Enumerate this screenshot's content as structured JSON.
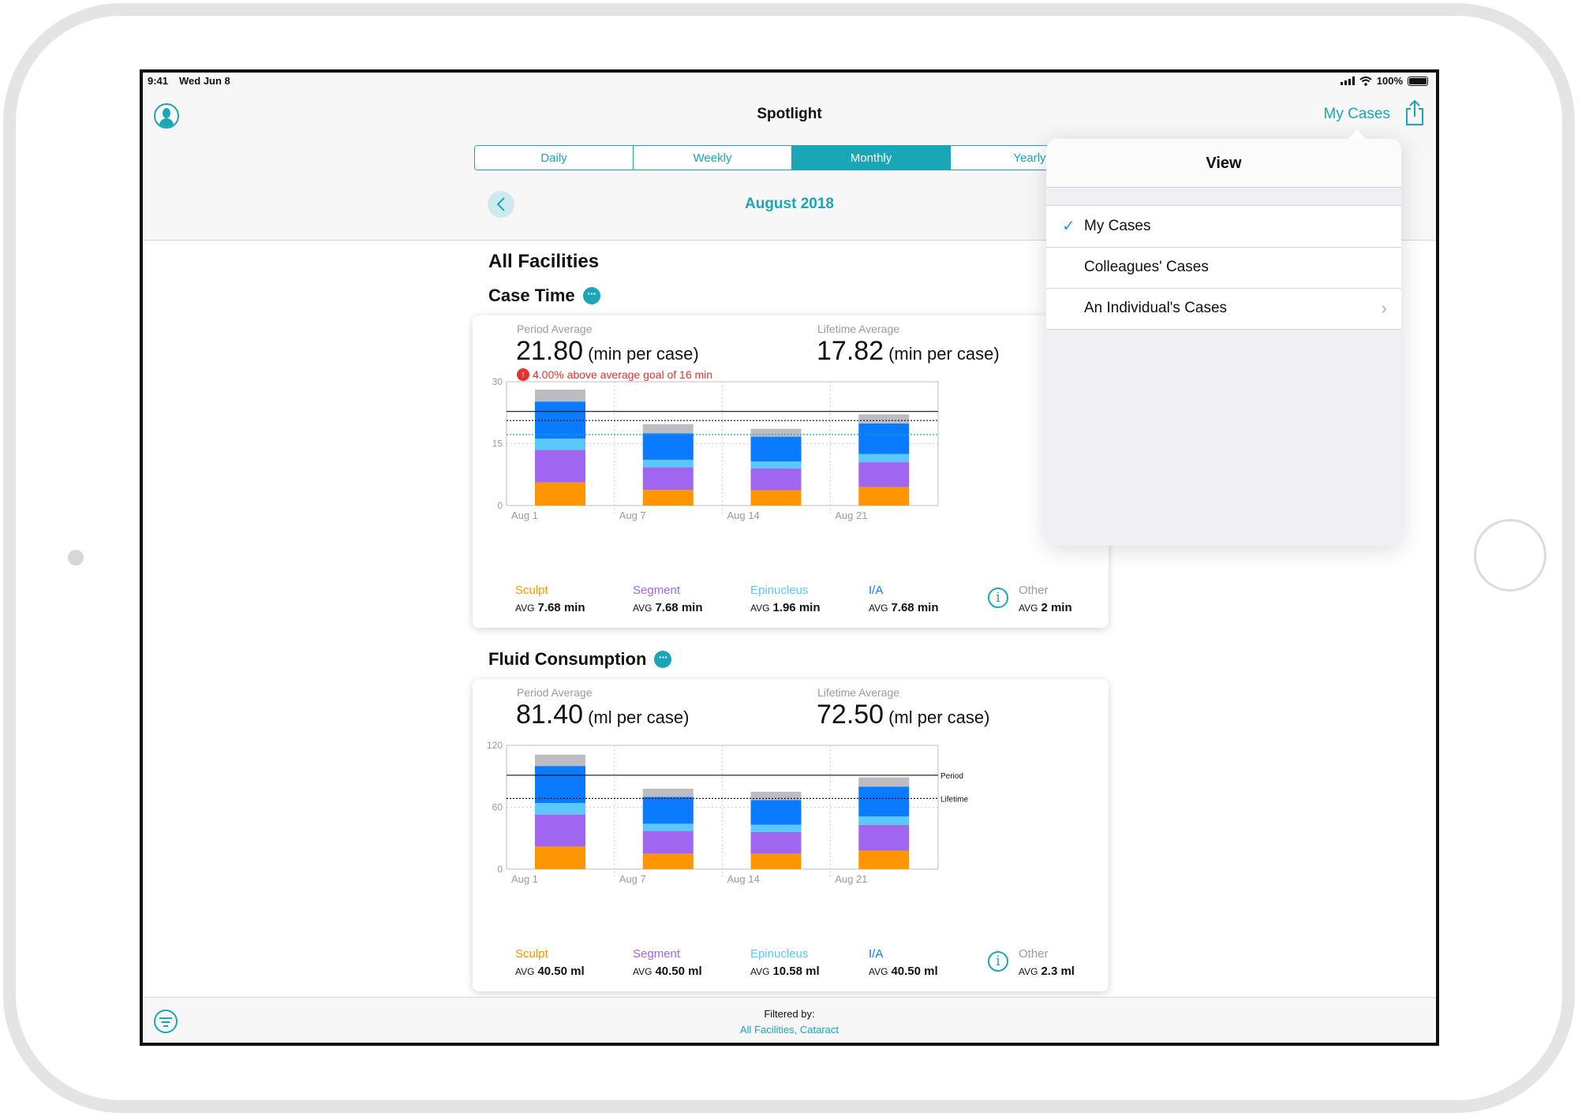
{
  "status_bar": {
    "time": "9:41",
    "date": "Wed Jun 8",
    "battery": "100%"
  },
  "nav": {
    "title": "Spotlight",
    "right_label": "My Cases"
  },
  "segments": [
    "Daily",
    "Weekly",
    "Monthly",
    "Yearly"
  ],
  "active_segment": "Monthly",
  "period_label": "August 2018",
  "facility_title": "All Facilities",
  "colors": {
    "accent": "#1aa6b7",
    "sculpt": "#ff9500",
    "segment": "#a066f0",
    "epinucleus": "#5ac8fa",
    "ia": "#0a7aff",
    "other": "#bcbcc2",
    "alert": "#e3332f"
  },
  "case_time": {
    "title": "Case Time",
    "period_label": "Period Average",
    "period_value": "21.80",
    "period_unit": "(min per case)",
    "lifetime_label": "Lifetime Average",
    "lifetime_value": "17.82",
    "lifetime_unit": "(min per case)",
    "goal_text": "4.00% above average goal of 16 min",
    "legend": [
      {
        "name": "Sculpt",
        "avg_label": "AVG",
        "avg": "7.68 min"
      },
      {
        "name": "Segment",
        "avg_label": "AVG",
        "avg": "7.68 min"
      },
      {
        "name": "Epinucleus",
        "avg_label": "AVG",
        "avg": "1.96 min"
      },
      {
        "name": "I/A",
        "avg_label": "AVG",
        "avg": "7.68 min"
      },
      {
        "name": "Other",
        "avg_label": "AVG",
        "avg": "2 min"
      }
    ]
  },
  "fluid": {
    "title": "Fluid Consumption",
    "period_label": "Period Average",
    "period_value": "81.40",
    "period_unit": "(ml per case)",
    "lifetime_label": "Lifetime Average",
    "lifetime_value": "72.50",
    "lifetime_unit": "(ml per case)",
    "legend": [
      {
        "name": "Sculpt",
        "avg_label": "AVG",
        "avg": "40.50 ml"
      },
      {
        "name": "Segment",
        "avg_label": "AVG",
        "avg": "40.50 ml"
      },
      {
        "name": "Epinucleus",
        "avg_label": "AVG",
        "avg": "10.58 ml"
      },
      {
        "name": "I/A",
        "avg_label": "AVG",
        "avg": "40.50 ml"
      },
      {
        "name": "Other",
        "avg_label": "AVG",
        "avg": "2.3 ml"
      }
    ]
  },
  "chart_data": [
    {
      "type": "bar",
      "stacked": true,
      "categories": [
        "Aug 1",
        "Aug 7",
        "Aug 14",
        "Aug 21"
      ],
      "ylim": [
        0,
        30
      ],
      "yticks": [
        0,
        15,
        30
      ],
      "series": [
        {
          "name": "Sculpt",
          "values": [
            5.6,
            3.8,
            3.7,
            4.5
          ]
        },
        {
          "name": "Segment",
          "values": [
            7.9,
            5.5,
            5.3,
            6.0
          ]
        },
        {
          "name": "Epinucleus",
          "values": [
            2.7,
            1.8,
            1.7,
            2.0
          ]
        },
        {
          "name": "I/A",
          "values": [
            9.0,
            6.4,
            6.0,
            7.4
          ]
        },
        {
          "name": "Other",
          "values": [
            2.9,
            2.2,
            1.9,
            2.2
          ]
        }
      ],
      "reference_lines": [
        {
          "style": "solid",
          "value": 22.8
        },
        {
          "style": "dotted",
          "value": 20.6
        },
        {
          "style": "dotted-teal",
          "value": 17.2
        }
      ]
    },
    {
      "type": "bar",
      "stacked": true,
      "categories": [
        "Aug 1",
        "Aug 7",
        "Aug 14",
        "Aug 21"
      ],
      "ylim": [
        0,
        120
      ],
      "yticks": [
        0,
        60,
        120
      ],
      "series": [
        {
          "name": "Sculpt",
          "values": [
            22,
            15,
            15,
            18
          ]
        },
        {
          "name": "Segment",
          "values": [
            31,
            22,
            21,
            25
          ]
        },
        {
          "name": "Epinucleus",
          "values": [
            11,
            7,
            7,
            8
          ]
        },
        {
          "name": "I/A",
          "values": [
            36,
            26,
            24,
            29
          ]
        },
        {
          "name": "Other",
          "values": [
            11,
            8,
            8,
            9
          ]
        }
      ],
      "reference_lines": [
        {
          "label": "Period",
          "style": "solid",
          "value": 91
        },
        {
          "label": "Lifetime",
          "style": "dotted",
          "value": 68.5
        }
      ]
    }
  ],
  "popover": {
    "title": "View",
    "items": [
      {
        "label": "My Cases",
        "checked": true
      },
      {
        "label": "Colleagues' Cases",
        "checked": false
      },
      {
        "label": "An Individual's Cases",
        "checked": false,
        "chevron": true
      }
    ]
  },
  "filter": {
    "title": "Filtered by:",
    "value": "All Facilities, Cataract"
  }
}
